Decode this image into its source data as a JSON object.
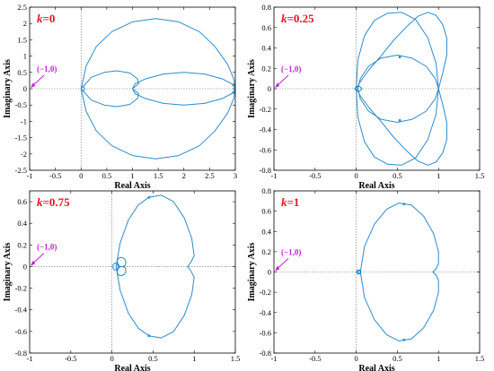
{
  "chart_data": [
    {
      "type": "line",
      "panel_label": "k=0",
      "label_var": "k",
      "label_value": "=0",
      "xlabel": "Real Axis",
      "ylabel": "Imaginary Axis",
      "xlim": [
        -1,
        3
      ],
      "ylim": [
        -2.5,
        2.5
      ],
      "xticks": [
        "-1",
        "-0.5",
        "0",
        "0.5",
        "1",
        "1.5",
        "2",
        "2.5",
        "3"
      ],
      "yticks": [
        "2.5",
        "2",
        "1.5",
        "1",
        "0.5",
        "0",
        "-0.5",
        "-1",
        "-1.5",
        "-2",
        "-2.5"
      ],
      "xtick_values": [
        -1,
        -0.5,
        0,
        0.5,
        1,
        1.5,
        2,
        2.5,
        3
      ],
      "ytick_values": [
        2.5,
        2,
        1.5,
        1,
        0.5,
        0,
        -0.5,
        -1,
        -1.5,
        -2,
        -2.5
      ],
      "critical_point_label": "(−1,0)",
      "curves": [
        {
          "x": [
            0,
            0.1,
            0.3,
            0.6,
            1.0,
            1.45,
            1.9,
            2.3,
            2.6,
            2.85,
            2.97,
            3.0
          ],
          "y": [
            0,
            0.7,
            1.3,
            1.75,
            2.05,
            2.15,
            2.05,
            1.75,
            1.3,
            0.75,
            0.3,
            0
          ]
        },
        {
          "x": [
            0,
            0.1,
            0.3,
            0.6,
            1.0,
            1.45,
            1.9,
            2.3,
            2.6,
            2.85,
            2.97,
            3.0
          ],
          "y": [
            0,
            -0.7,
            -1.3,
            -1.75,
            -2.05,
            -2.15,
            -2.05,
            -1.75,
            -1.3,
            -0.75,
            -0.3,
            0
          ]
        },
        {
          "x": [
            0,
            0.2,
            0.45,
            0.7,
            0.95,
            1.1,
            1.12,
            1.0,
            1.05,
            1.25,
            1.6,
            2.0,
            2.4,
            2.75,
            2.93,
            3.0
          ],
          "y": [
            0,
            0.35,
            0.5,
            0.55,
            0.48,
            0.3,
            0.15,
            0,
            -0.15,
            -0.3,
            -0.45,
            -0.5,
            -0.45,
            -0.3,
            -0.15,
            0
          ]
        },
        {
          "x": [
            0,
            0.2,
            0.45,
            0.7,
            0.95,
            1.1,
            1.12,
            1.0,
            1.05,
            1.25,
            1.6,
            2.0,
            2.4,
            2.75,
            2.93,
            3.0
          ],
          "y": [
            0,
            -0.35,
            -0.5,
            -0.55,
            -0.48,
            -0.3,
            -0.15,
            0,
            0.15,
            0.3,
            0.45,
            0.5,
            0.45,
            0.3,
            0.15,
            0
          ]
        },
        {
          "x": [
            0,
            0.02,
            0.05,
            0.07,
            0.05,
            0.02,
            0
          ],
          "y": [
            0,
            0.05,
            0.06,
            0,
            -0.06,
            -0.05,
            0
          ]
        }
      ],
      "markers": [
        {
          "x": 2.97,
          "y": 0.12
        },
        {
          "x": 2.97,
          "y": -0.12
        }
      ]
    },
    {
      "type": "line",
      "panel_label": "k=0.25",
      "label_var": "k",
      "label_value": "=0.25",
      "xlabel": "Real Axis",
      "ylabel": "Imaginary Axis",
      "xlim": [
        -1,
        1.5
      ],
      "ylim": [
        -0.8,
        0.8
      ],
      "xticks": [
        "-1",
        "-0.5",
        "0",
        "0.5",
        "1",
        "1.5"
      ],
      "yticks": [
        "0.8",
        "0.6",
        "0.4",
        "0.2",
        "0",
        "-0.2",
        "-0.4",
        "-0.6",
        "-0.8"
      ],
      "xtick_values": [
        -1,
        -0.5,
        0,
        0.5,
        1,
        1.5
      ],
      "ytick_values": [
        0.8,
        0.6,
        0.4,
        0.2,
        0,
        -0.2,
        -0.4,
        -0.6,
        -0.8
      ],
      "critical_point_label": "(−1,0)",
      "curves": [
        {
          "x": [
            0,
            0.02,
            0.1,
            0.22,
            0.38,
            0.55,
            0.72,
            0.87,
            0.97,
            1.0
          ],
          "y": [
            0,
            0.28,
            0.52,
            0.67,
            0.74,
            0.75,
            0.68,
            0.5,
            0.25,
            0
          ]
        },
        {
          "x": [
            0,
            0.02,
            0.1,
            0.22,
            0.38,
            0.55,
            0.72,
            0.87,
            0.97,
            1.0
          ],
          "y": [
            0,
            -0.28,
            -0.52,
            -0.67,
            -0.74,
            -0.75,
            -0.68,
            -0.5,
            -0.25,
            0
          ]
        },
        {
          "x": [
            1.0,
            1.05,
            1.1,
            1.1,
            1.05,
            0.97,
            0.87,
            0.75,
            0.6,
            0.45,
            0.3,
            0.15,
            0.05,
            0
          ],
          "y": [
            0,
            0.15,
            0.33,
            0.5,
            0.63,
            0.72,
            0.75,
            0.71,
            0.6,
            0.47,
            0.32,
            0.18,
            0.07,
            0
          ]
        },
        {
          "x": [
            1.0,
            1.05,
            1.1,
            1.1,
            1.05,
            0.97,
            0.87,
            0.75,
            0.6,
            0.45,
            0.3,
            0.15,
            0.05,
            0
          ],
          "y": [
            0,
            -0.15,
            -0.33,
            -0.5,
            -0.63,
            -0.72,
            -0.75,
            -0.71,
            -0.6,
            -0.47,
            -0.32,
            -0.18,
            -0.07,
            0
          ]
        },
        {
          "x": [
            0.02,
            0.05,
            0.15,
            0.3,
            0.5,
            0.68,
            0.85,
            0.96,
            1.0,
            0.96,
            0.85,
            0.68,
            0.5,
            0.3,
            0.15,
            0.05,
            0.02
          ],
          "y": [
            0,
            0.1,
            0.22,
            0.3,
            0.33,
            0.3,
            0.22,
            0.1,
            0,
            -0.1,
            -0.22,
            -0.3,
            -0.33,
            -0.3,
            -0.22,
            -0.1,
            0
          ]
        },
        {
          "x": [
            -0.02,
            0.0,
            0.04,
            0.07,
            0.04,
            0.0,
            -0.02
          ],
          "y": [
            0,
            0.02,
            0.025,
            0,
            -0.025,
            -0.02,
            0
          ]
        }
      ],
      "markers": [
        {
          "x": 0.53,
          "y": 0.31
        },
        {
          "x": 0.53,
          "y": -0.31
        }
      ]
    },
    {
      "type": "line",
      "panel_label": "k=0.75",
      "label_var": "k",
      "label_value": "=0.75",
      "xlabel": "Real Axis",
      "ylabel": "Imaginary Axis",
      "xlim": [
        -1,
        1.5
      ],
      "ylim": [
        -0.8,
        0.7
      ],
      "xticks": [
        "-1",
        "-0.5",
        "0",
        "0.5",
        "1",
        "1.5"
      ],
      "yticks": [
        "0.6",
        "0.4",
        "0.2",
        "0",
        "-0.2",
        "-0.4",
        "-0.6",
        "-0.8"
      ],
      "xtick_values": [
        -1,
        -0.5,
        0,
        0.5,
        1,
        1.5
      ],
      "ytick_values": [
        0.6,
        0.4,
        0.2,
        0,
        -0.2,
        -0.4,
        -0.6,
        -0.8
      ],
      "critical_point_label": "(−1,0)",
      "curves": [
        {
          "x": [
            0.05,
            0.1,
            0.2,
            0.32,
            0.45,
            0.6,
            0.75,
            0.88,
            0.97,
            1.0,
            0.96,
            0.92
          ],
          "y": [
            0,
            0.22,
            0.43,
            0.57,
            0.64,
            0.66,
            0.6,
            0.45,
            0.26,
            0.1,
            0.04,
            0
          ]
        },
        {
          "x": [
            0.05,
            0.1,
            0.2,
            0.32,
            0.45,
            0.6,
            0.75,
            0.88,
            0.97,
            1.0,
            0.96,
            0.92
          ],
          "y": [
            0,
            -0.22,
            -0.43,
            -0.57,
            -0.64,
            -0.66,
            -0.6,
            -0.45,
            -0.26,
            -0.1,
            -0.04,
            0
          ]
        },
        {
          "x": [
            0.0,
            0.03,
            0.07,
            0.08,
            0.06,
            0.03,
            0.0,
            0.03,
            0.06,
            0.08,
            0.07,
            0.03,
            0.0
          ],
          "y": [
            0,
            0.03,
            0.03,
            0.0,
            -0.03,
            -0.03,
            0,
            0.03,
            0.03,
            0.0,
            -0.03,
            -0.03,
            0
          ]
        },
        {
          "x": [
            0.1,
            0.07,
            0.065,
            0.085,
            0.12,
            0.155,
            0.17,
            0.16,
            0.13,
            0.1
          ],
          "y": [
            0,
            0.025,
            0.055,
            0.08,
            0.085,
            0.07,
            0.04,
            0.01,
            0.0,
            0
          ]
        },
        {
          "x": [
            0.1,
            0.07,
            0.065,
            0.085,
            0.12,
            0.155,
            0.17,
            0.16,
            0.13,
            0.1
          ],
          "y": [
            0,
            -0.025,
            -0.055,
            -0.08,
            -0.085,
            -0.07,
            -0.04,
            -0.01,
            0.0,
            0
          ]
        }
      ],
      "markers": [
        {
          "x": 0.45,
          "y": 0.64
        },
        {
          "x": 0.45,
          "y": -0.64
        }
      ]
    },
    {
      "type": "line",
      "panel_label": "k=1",
      "label_var": "k",
      "label_value": "=1",
      "xlabel": "Real Axis",
      "ylabel": "Imaginary Axis",
      "xlim": [
        -1,
        1.5
      ],
      "ylim": [
        -0.8,
        0.8
      ],
      "xticks": [
        "-1",
        "-0.5",
        "0",
        "0.5",
        "1",
        "1.5"
      ],
      "yticks": [
        "0.8",
        "0.6",
        "0.4",
        "0.2",
        "0",
        "-0.2",
        "-0.4",
        "-0.6",
        "-0.8"
      ],
      "xtick_values": [
        -1,
        -0.5,
        0,
        0.5,
        1,
        1.5
      ],
      "ytick_values": [
        0.8,
        0.6,
        0.4,
        0.2,
        0,
        -0.2,
        -0.4,
        -0.6,
        -0.8
      ],
      "critical_point_label": "(−1,0)",
      "curves": [
        {
          "x": [
            0.05,
            0.1,
            0.22,
            0.37,
            0.52,
            0.67,
            0.82,
            0.94,
            1.0,
            1.0,
            0.97,
            0.93
          ],
          "y": [
            0,
            0.25,
            0.47,
            0.62,
            0.68,
            0.66,
            0.55,
            0.38,
            0.2,
            0.08,
            0.03,
            0
          ]
        },
        {
          "x": [
            0.05,
            0.1,
            0.22,
            0.37,
            0.52,
            0.67,
            0.82,
            0.94,
            1.0,
            1.0,
            0.97,
            0.93
          ],
          "y": [
            0,
            -0.25,
            -0.47,
            -0.62,
            -0.68,
            -0.66,
            -0.55,
            -0.38,
            -0.2,
            -0.08,
            -0.03,
            0
          ]
        },
        {
          "x": [
            0.0,
            0.02,
            0.05,
            0.06,
            0.05,
            0.02,
            0.0
          ],
          "y": [
            0,
            0.02,
            0.02,
            0,
            -0.02,
            -0.02,
            0
          ]
        },
        {
          "x": [
            0.01,
            0.025,
            0.045,
            0.05,
            0.045,
            0.025,
            0.01
          ],
          "y": [
            0,
            0.013,
            0.013,
            0,
            -0.013,
            -0.013,
            0
          ]
        }
      ],
      "markers": [
        {
          "x": 0.58,
          "y": 0.67
        },
        {
          "x": 0.58,
          "y": -0.67
        }
      ]
    }
  ],
  "colors": {
    "curve": "#2e8bc9",
    "panel_label": "#e8141d",
    "critical_point": "#c01fd6",
    "guide": "#6e6e6e"
  }
}
